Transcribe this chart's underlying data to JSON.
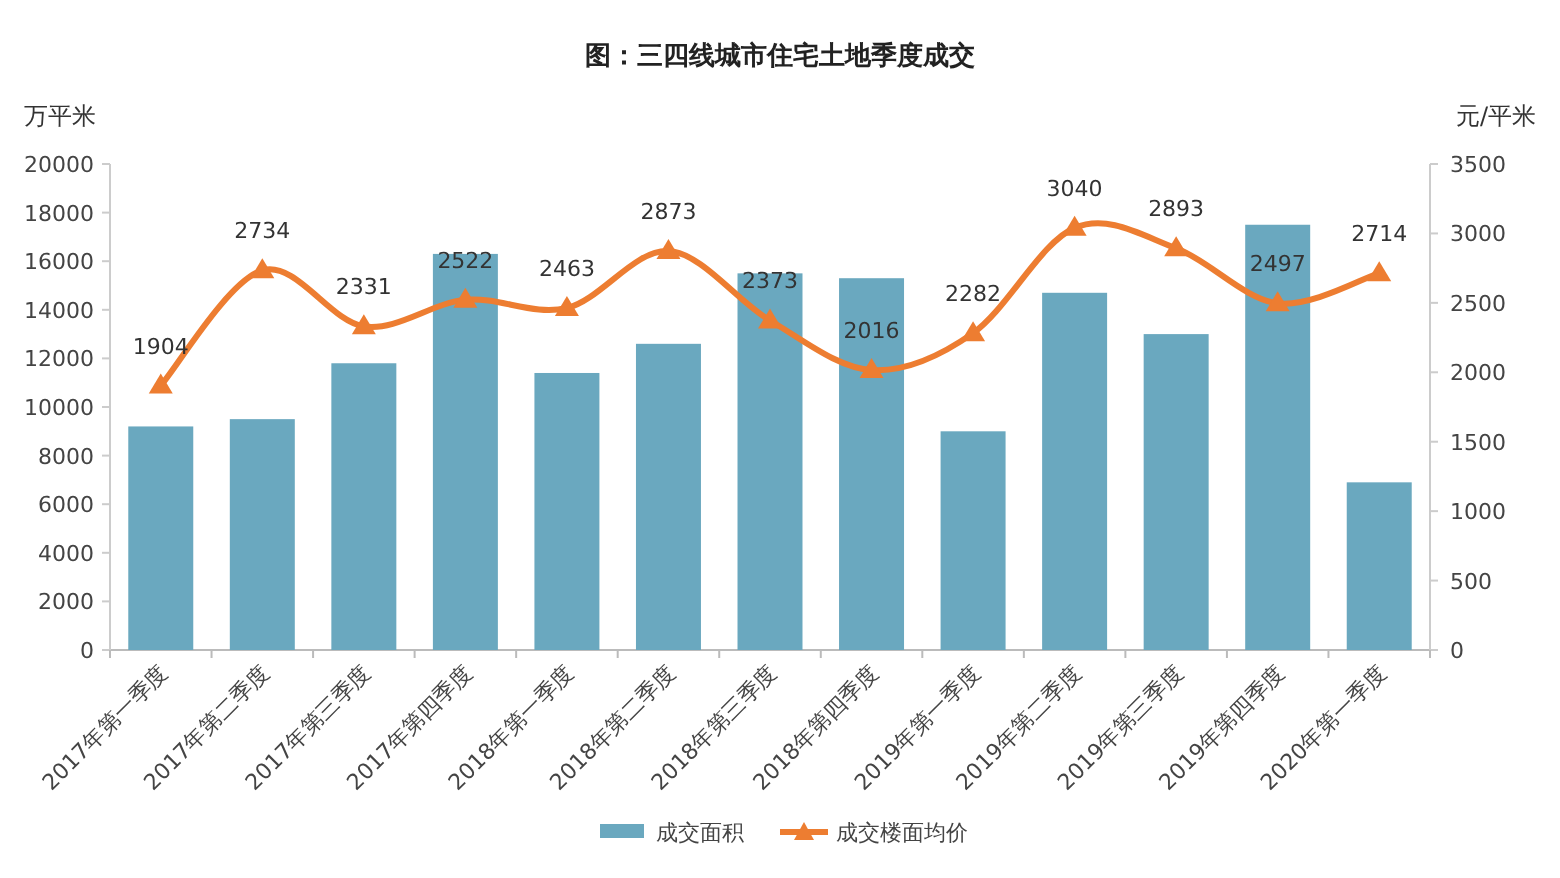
{
  "chart_data": {
    "type": "bar",
    "title": "图：三四线城市住宅土地季度成交",
    "ylabel": "万平米",
    "y2label": "元/平米",
    "categories": [
      "2017年第一季度",
      "2017年第二季度",
      "2017年第三季度",
      "2017年第四季度",
      "2018年第一季度",
      "2018年第二季度",
      "2018年第三季度",
      "2018年第四季度",
      "2019年第一季度",
      "2019年第二季度",
      "2019年第三季度",
      "2019年第四季度",
      "2020年第一季度"
    ],
    "series": [
      {
        "name": "成交面积",
        "color": "#6aa8bf",
        "values": [
          9200,
          9500,
          11800,
          16300,
          11400,
          12600,
          15500,
          15300,
          9000,
          14700,
          13000,
          17500,
          6900
        ]
      },
      {
        "name": "成交楼面均价",
        "type": "line",
        "axis": "y2",
        "color": "#ed7d31",
        "marker": "triangle",
        "data_labels": true,
        "values": [
          1904,
          2734,
          2331,
          2522,
          2463,
          2873,
          2373,
          2016,
          2282,
          3040,
          2893,
          2497,
          2714
        ]
      }
    ],
    "ylim": [
      0,
      20000
    ],
    "yticks": [
      0,
      2000,
      4000,
      6000,
      8000,
      10000,
      12000,
      14000,
      16000,
      18000,
      20000
    ],
    "y2lim": [
      0,
      3500
    ],
    "y2ticks": [
      0,
      500,
      1000,
      1500,
      2000,
      2500,
      3000,
      3500
    ],
    "grid": false,
    "legend": "bottom"
  }
}
